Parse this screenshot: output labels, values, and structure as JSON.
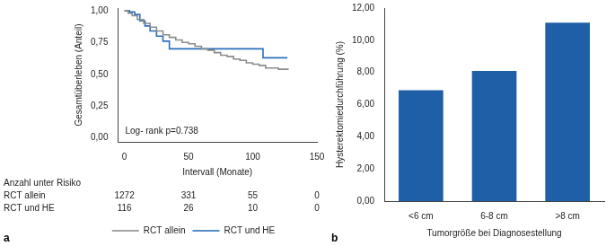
{
  "chart_data": [
    {
      "type": "line",
      "line_style": "step",
      "panel_label": "a",
      "x_label": "Intervall (Monate)",
      "y_label": "Gesamtüberleben (Anteil)",
      "xlim": [
        -5,
        150
      ],
      "xticks": [
        0,
        50,
        100,
        150
      ],
      "ylim": [
        -0.03,
        1.02
      ],
      "yticks": [
        {
          "value": 0,
          "label": "0,00"
        },
        {
          "value": 0.25,
          "label": "0,25"
        },
        {
          "value": 0.5,
          "label": "0,50"
        },
        {
          "value": 0.75,
          "label": "0,75"
        },
        {
          "value": 1,
          "label": "1,00"
        }
      ],
      "grid": false,
      "legend": "bottom",
      "annotations": [
        "Log- rank p=0.738"
      ],
      "series": [
        {
          "name": "RCT allein",
          "color": "#8c8c8c",
          "x": [
            0,
            3,
            6,
            10,
            15,
            20,
            25,
            30,
            35,
            40,
            45,
            50,
            55,
            60,
            65,
            70,
            75,
            80,
            85,
            90,
            95,
            100,
            105,
            110,
            115,
            120,
            128
          ],
          "values": [
            1,
            0.98,
            0.96,
            0.93,
            0.9,
            0.87,
            0.84,
            0.81,
            0.79,
            0.77,
            0.75,
            0.74,
            0.72,
            0.7,
            0.69,
            0.67,
            0.65,
            0.64,
            0.62,
            0.61,
            0.59,
            0.58,
            0.57,
            0.55,
            0.55,
            0.54,
            0.54
          ]
        },
        {
          "name": "RCT und HE",
          "color": "#2a6fbd",
          "x": [
            0,
            4,
            8,
            12,
            16,
            20,
            25,
            30,
            35,
            105,
            108,
            127
          ],
          "values": [
            1,
            0.99,
            0.97,
            0.92,
            0.88,
            0.84,
            0.8,
            0.76,
            0.7,
            0.7,
            0.63,
            0.63
          ]
        }
      ],
      "risk_table": {
        "title": "Anzahl unter Risiko",
        "x": [
          0,
          50,
          100,
          150
        ],
        "rows": [
          {
            "name": "RCT allein",
            "values": [
              1272,
              331,
              55,
              0
            ]
          },
          {
            "name": "RCT und HE",
            "values": [
              116,
              26,
              10,
              0
            ]
          }
        ]
      }
    },
    {
      "type": "bar",
      "panel_label": "b",
      "x_label": "Tumorgröße bei Diagnosestellung",
      "y_label": "Hysterektomiedurchführung (%)",
      "categories": [
        "<6 cm",
        "6-8 cm",
        ">8 cm"
      ],
      "values": [
        6.9,
        8.1,
        11.1
      ],
      "color": "#1f5fa8",
      "ylim": [
        0,
        12
      ],
      "yticks": [
        {
          "value": 0,
          "label": "0,00"
        },
        {
          "value": 2,
          "label": "2,00"
        },
        {
          "value": 4,
          "label": "4,00"
        },
        {
          "value": 6,
          "label": "6,00"
        },
        {
          "value": 8,
          "label": "8,00"
        },
        {
          "value": 10,
          "label": "10,00"
        },
        {
          "value": 12,
          "label": "12,00"
        }
      ],
      "grid": false
    }
  ]
}
